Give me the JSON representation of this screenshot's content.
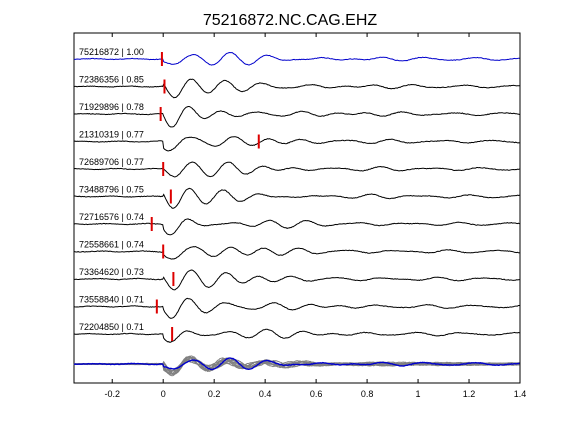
{
  "chart_data": {
    "type": "line",
    "title": "75216872.NC.CAG.EHZ",
    "xlabel": "",
    "ylabel": "",
    "xlim": [
      -0.35,
      1.4
    ],
    "xticks": [
      -0.2,
      0,
      0.2,
      0.4,
      0.6,
      0.8,
      1,
      1.2,
      1.4
    ],
    "xtick_labels": [
      "-0.2",
      "0",
      "0.2",
      "0.4",
      "0.6",
      "0.8",
      "1",
      "1.2",
      "1.4"
    ],
    "grid": false,
    "legend": "none",
    "colors": {
      "reference": "#0000cc",
      "trace": "#000000",
      "pick": "#dd0000",
      "stack": "#808080"
    },
    "traces": [
      {
        "label": "75216872 | 1.00",
        "event_id": "75216872",
        "correlation": 1.0,
        "pick_time": -0.005,
        "reference": true
      },
      {
        "label": "72386356 | 0.85",
        "event_id": "72386356",
        "correlation": 0.85,
        "pick_time": 0.005
      },
      {
        "label": "71929896 | 0.78",
        "event_id": "71929896",
        "correlation": 0.78,
        "pick_time": -0.01
      },
      {
        "label": "21310319 | 0.77",
        "event_id": "21310319",
        "correlation": 0.77,
        "pick_time": 0.375
      },
      {
        "label": "72689706 | 0.77",
        "event_id": "72689706",
        "correlation": 0.77,
        "pick_time": 0.0
      },
      {
        "label": "73488796 | 0.75",
        "event_id": "73488796",
        "correlation": 0.75,
        "pick_time": 0.03
      },
      {
        "label": "72716576 | 0.74",
        "event_id": "72716576",
        "correlation": 0.74,
        "pick_time": -0.045
      },
      {
        "label": "72558661 | 0.74",
        "event_id": "72558661",
        "correlation": 0.74,
        "pick_time": 0.0
      },
      {
        "label": "73364620 | 0.73",
        "event_id": "73364620",
        "correlation": 0.73,
        "pick_time": 0.04
      },
      {
        "label": "73558840 | 0.71",
        "event_id": "73558840",
        "correlation": 0.71,
        "pick_time": -0.025
      },
      {
        "label": "72204850 | 0.71",
        "event_id": "72204850",
        "correlation": 0.71,
        "pick_time": 0.035
      }
    ],
    "stack": {
      "reference_color": "#0000cc",
      "overlay_color": "#808080"
    }
  }
}
